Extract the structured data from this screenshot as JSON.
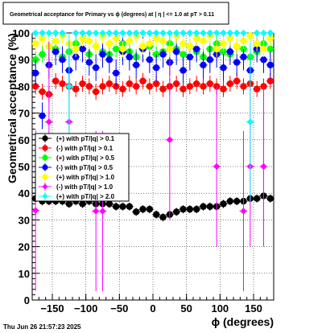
{
  "chart_data": {
    "type": "scatter",
    "title": "Geometrical acceptance for Primary vs ϕ (degrees) at |  η  | <= 1.0 at pT > 0.11",
    "xlabel": "ϕ  (degrees)",
    "ylabel": "Geometrical acceptance (%)",
    "xlim": [
      -180,
      180
    ],
    "ylim": [
      0,
      100
    ],
    "x_ticks": [
      -150,
      -100,
      -50,
      0,
      50,
      100,
      150
    ],
    "x_tick_labels": [
      "−150",
      "−100",
      "−50",
      "0",
      "50",
      "100",
      "150"
    ],
    "y_ticks": [
      0,
      10,
      20,
      30,
      40,
      50,
      60,
      70,
      80,
      90,
      100
    ],
    "grid": true,
    "legend_position": "center-left",
    "series": [
      {
        "name": "(+) with pT/|q| > 0.1",
        "color": "#000000",
        "marker": "circle",
        "base": 36,
        "spread": 1.5,
        "x": [
          -175,
          -165,
          -155,
          -145,
          -135,
          -125,
          -115,
          -105,
          -95,
          -85,
          -75,
          -65,
          -55,
          -45,
          -35,
          -25,
          -15,
          -5,
          5,
          15,
          25,
          35,
          45,
          55,
          65,
          75,
          85,
          95,
          105,
          115,
          125,
          135,
          145,
          155,
          165,
          175
        ],
        "y": [
          38,
          37,
          37,
          37,
          37,
          36,
          37,
          36,
          37,
          36,
          36,
          36,
          35,
          35,
          35,
          33,
          34,
          34,
          32,
          31,
          32,
          33,
          34,
          34,
          34,
          35,
          35,
          35,
          36,
          37,
          37,
          37,
          38,
          38,
          39,
          38
        ]
      },
      {
        "name": "(-) with pT/|q| > 0.1",
        "color": "#ff0000",
        "marker": "circle",
        "base": 80,
        "spread": 3,
        "x": [
          -175,
          -165,
          -155,
          -145,
          -135,
          -125,
          -115,
          -105,
          -95,
          -85,
          -75,
          -65,
          -55,
          -45,
          -35,
          -25,
          -15,
          -5,
          5,
          15,
          25,
          35,
          45,
          55,
          65,
          75,
          85,
          95,
          105,
          115,
          125,
          135,
          145,
          155,
          165,
          175
        ],
        "y": [
          80,
          78,
          77,
          82,
          81,
          80,
          79,
          81,
          80,
          78,
          80,
          81,
          80,
          79,
          81,
          80,
          82,
          80,
          81,
          79,
          80,
          81,
          79,
          80,
          81,
          80,
          81,
          80,
          79,
          81,
          82,
          80,
          81,
          79,
          80,
          82
        ]
      },
      {
        "name": "(+) with pT/|q| > 0.5",
        "color": "#00ff00",
        "marker": "circle",
        "base": 93,
        "spread": 3,
        "x": [
          -175,
          -165,
          -155,
          -145,
          -135,
          -125,
          -115,
          -105,
          -95,
          -85,
          -75,
          -65,
          -55,
          -45,
          -35,
          -25,
          -15,
          -5,
          5,
          15,
          25,
          35,
          45,
          55,
          65,
          75,
          85,
          95,
          105,
          115,
          125,
          135,
          145,
          155,
          165,
          175
        ],
        "y": [
          90,
          92,
          95,
          94,
          91,
          93,
          96,
          94,
          92,
          95,
          93,
          92,
          94,
          96,
          93,
          91,
          94,
          95,
          92,
          93,
          96,
          94,
          92,
          95,
          93,
          91,
          94,
          96,
          93,
          92,
          95,
          94,
          91,
          93,
          96,
          94
        ]
      },
      {
        "name": "(-) with pT/|q| > 0.5",
        "color": "#0000ff",
        "marker": "circle",
        "base": 90,
        "spread": 5,
        "x": [
          -175,
          -165,
          -155,
          -145,
          -135,
          -125,
          -115,
          -105,
          -95,
          -85,
          -75,
          -65,
          -55,
          -45,
          -35,
          -25,
          -15,
          -5,
          5,
          15,
          25,
          35,
          45,
          55,
          65,
          75,
          85,
          95,
          105,
          115,
          125,
          135,
          145,
          155,
          165,
          175
        ],
        "y": [
          85,
          69,
          88,
          93,
          90,
          86,
          91,
          94,
          89,
          87,
          92,
          90,
          85,
          93,
          91,
          88,
          94,
          90,
          87,
          92,
          89,
          93,
          86,
          91,
          94,
          88,
          90,
          92,
          87,
          93,
          89,
          91,
          86,
          94,
          90,
          88
        ]
      },
      {
        "name": "(+) with pT/|q| > 1.0",
        "color": "#ffff00",
        "marker": "circle",
        "base": 96,
        "spread": 3,
        "x": [
          -175,
          -165,
          -155,
          -145,
          -135,
          -125,
          -115,
          -105,
          -95,
          -85,
          -75,
          -65,
          -55,
          -45,
          -35,
          -25,
          -15,
          -5,
          5,
          15,
          25,
          35,
          45,
          55,
          65,
          75,
          85,
          95,
          105,
          115,
          125,
          135,
          145,
          155,
          165,
          175
        ],
        "y": [
          96,
          98,
          95,
          97,
          99,
          96,
          94,
          98,
          97,
          95,
          99,
          96,
          98,
          94,
          97,
          99,
          95,
          96,
          98,
          97,
          94,
          99,
          96,
          95,
          98,
          97,
          99,
          94,
          96,
          98,
          95,
          97,
          99,
          96,
          94,
          98
        ]
      },
      {
        "name": "(-) with pT/|q| > 1.0",
        "color": "#ff00ff",
        "marker": "diamond",
        "base": 100,
        "spread": 0,
        "x": [
          -175,
          -165,
          -155,
          -145,
          -135,
          -125,
          -115,
          -105,
          -95,
          -85,
          -75,
          -65,
          -55,
          -45,
          -35,
          -25,
          -15,
          -5,
          5,
          15,
          25,
          35,
          45,
          55,
          65,
          75,
          85,
          95,
          105,
          115,
          125,
          135,
          145,
          155,
          165,
          175
        ],
        "y": [
          33.5,
          100,
          66.7,
          100,
          100,
          66.7,
          100,
          100,
          100,
          33.3,
          33.3,
          100,
          100,
          100,
          100,
          100,
          100,
          100,
          100,
          100,
          60,
          100,
          100,
          100,
          100,
          100,
          100,
          50,
          100,
          100,
          100,
          33.3,
          50,
          100,
          50,
          100
        ]
      },
      {
        "name": "(+) with pT/|q| > 2.0",
        "color": "#00ffff",
        "marker": "diamond",
        "base": 100,
        "spread": 0,
        "x": [
          -175,
          -165,
          -155,
          -145,
          -135,
          -125,
          -115,
          -105,
          -95,
          -85,
          -75,
          -65,
          -55,
          -45,
          -35,
          -25,
          -15,
          -5,
          5,
          15,
          25,
          35,
          45,
          55,
          65,
          75,
          85,
          95,
          105,
          115,
          125,
          135,
          145,
          155,
          165,
          175
        ],
        "y": [
          100,
          100,
          100,
          100,
          100,
          80,
          100,
          100,
          100,
          100,
          100,
          100,
          100,
          100,
          100,
          100,
          100,
          100,
          100,
          100,
          100,
          100,
          100,
          100,
          100,
          100,
          100,
          100,
          100,
          100,
          100,
          100,
          66.7,
          100,
          100,
          100
        ]
      }
    ]
  },
  "footer": {
    "timestamp": "Thu Jun 26 21:57:23 2025"
  }
}
